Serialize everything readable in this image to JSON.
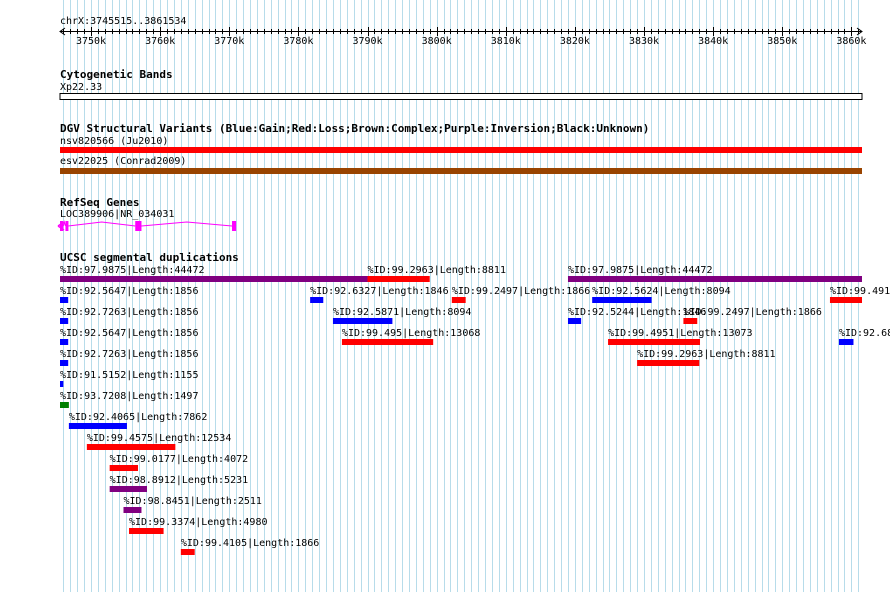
{
  "browser": {
    "position": "chrX:3745515..3861534",
    "axis": {
      "start": 3745515,
      "end": 3861534,
      "ticks": [
        {
          "value": 3750000,
          "label": "3750k"
        },
        {
          "value": 3760000,
          "label": "3760k"
        },
        {
          "value": 3770000,
          "label": "3770k"
        },
        {
          "value": 3780000,
          "label": "3780k"
        },
        {
          "value": 3790000,
          "label": "3790k"
        },
        {
          "value": 3800000,
          "label": "3800k"
        },
        {
          "value": 3810000,
          "label": "3810k"
        },
        {
          "value": 3820000,
          "label": "3820k"
        },
        {
          "value": 3830000,
          "label": "3830k"
        },
        {
          "value": 3840000,
          "label": "3840k"
        },
        {
          "value": 3850000,
          "label": "3850k"
        },
        {
          "value": 3860000,
          "label": "3860k"
        }
      ]
    },
    "colors": {
      "grid": "#b7dcea",
      "gain": "#0000ff",
      "loss": "#ff0000",
      "complex": "#994400",
      "inversion": "#800080",
      "dup_purple": "#800080",
      "dup_blue": "#0000ff",
      "dup_red": "#ff0000",
      "dup_green": "#008000",
      "gene": "#ff00ff"
    }
  },
  "tracks": [
    {
      "title": "Cytogenetic Bands",
      "features": [
        {
          "label": "Xp22.33",
          "start": 3745515,
          "end": 3861534,
          "style": "outline"
        }
      ]
    },
    {
      "title": "DGV Structural Variants (Blue:Gain;Red:Loss;Brown:Complex;Purple:Inversion;Black:Unknown)",
      "features": [
        {
          "label": "nsv820566 (Ju2010)",
          "start": 3745515,
          "end": 3861534,
          "color": "loss"
        },
        {
          "label": "esv22025 (Conrad2009)",
          "start": 3745515,
          "end": 3861534,
          "color": "complex"
        }
      ]
    },
    {
      "title": "RefSeq Genes",
      "gene": {
        "label": "LOC389906|NR_034031",
        "start": 3745515,
        "end": 3771000,
        "strand": "minus",
        "exons": [
          [
            3745515,
            3746000
          ],
          [
            3746300,
            3746700
          ],
          [
            3756400,
            3757300
          ],
          [
            3770400,
            3771000
          ]
        ]
      }
    },
    {
      "title": "UCSC segmental duplications",
      "rows": [
        [
          {
            "label": "%ID:97.9875|Length:44472",
            "start": 3745515,
            "end": 3790000,
            "color": "dup_purple"
          },
          {
            "label": "%ID:99.2963|Length:8811",
            "start": 3790000,
            "end": 3799000,
            "color": "dup_red"
          },
          {
            "label": "%ID:97.9875|Length:44472",
            "start": 3819000,
            "end": 3861534,
            "color": "dup_purple"
          }
        ],
        [
          {
            "label": "%ID:92.5647|Length:1856",
            "start": 3745515,
            "end": 3746700,
            "color": "dup_blue"
          },
          {
            "label": "%ID:92.6327|Length:1846",
            "start": 3781700,
            "end": 3783600,
            "color": "dup_blue"
          },
          {
            "label": "%ID:99.2497|Length:1866",
            "start": 3802200,
            "end": 3804200,
            "color": "dup_red"
          },
          {
            "label": "%ID:92.5624|Length:8094",
            "start": 3822500,
            "end": 3831100,
            "color": "dup_blue"
          },
          {
            "label": "%ID:99.491",
            "start": 3856900,
            "end": 3861534,
            "color": "dup_red"
          }
        ],
        [
          {
            "label": "%ID:92.7263|Length:1856",
            "start": 3745515,
            "end": 3746700,
            "color": "dup_blue"
          },
          {
            "label": "%ID:92.5871|Length:8094",
            "start": 3785000,
            "end": 3793600,
            "color": "dup_blue"
          },
          {
            "label": "%ID:92.5244|Length:1846",
            "start": 3819000,
            "end": 3820900,
            "color": "dup_blue"
          },
          {
            "label": "%ID:99.2497|Length:1866",
            "start": 3835700,
            "end": 3837700,
            "color": "dup_red"
          }
        ],
        [
          {
            "label": "%ID:92.5647|Length:1856",
            "start": 3745515,
            "end": 3746700,
            "color": "dup_blue"
          },
          {
            "label": "%ID:99.495|Length:13068",
            "start": 3786300,
            "end": 3799500,
            "color": "dup_red"
          },
          {
            "label": "%ID:99.4951|Length:13073",
            "start": 3824800,
            "end": 3838100,
            "color": "dup_red"
          },
          {
            "label": "%ID:92.68",
            "start": 3858200,
            "end": 3860300,
            "color": "dup_blue"
          }
        ],
        [
          {
            "label": "%ID:92.7263|Length:1856",
            "start": 3745515,
            "end": 3746700,
            "color": "dup_blue"
          },
          {
            "label": "%ID:99.2963|Length:8811",
            "start": 3829000,
            "end": 3838000,
            "color": "dup_red"
          }
        ],
        [
          {
            "label": "%ID:91.5152|Length:1155",
            "start": 3745515,
            "end": 3746000,
            "color": "dup_blue"
          }
        ],
        [
          {
            "label": "%ID:93.7208|Length:1497",
            "start": 3745515,
            "end": 3746800,
            "color": "dup_green"
          }
        ],
        [
          {
            "label": "%ID:92.4065|Length:7862",
            "start": 3746800,
            "end": 3755200,
            "color": "dup_blue"
          }
        ],
        [
          {
            "label": "%ID:99.4575|Length:12534",
            "start": 3749400,
            "end": 3762200,
            "color": "dup_red"
          }
        ],
        [
          {
            "label": "%ID:99.0177|Length:4072",
            "start": 3752700,
            "end": 3756800,
            "color": "dup_red"
          }
        ],
        [
          {
            "label": "%ID:98.8912|Length:5231",
            "start": 3752700,
            "end": 3758100,
            "color": "dup_purple"
          }
        ],
        [
          {
            "label": "%ID:98.8451|Length:2511",
            "start": 3754700,
            "end": 3757300,
            "color": "dup_purple"
          }
        ],
        [
          {
            "label": "%ID:99.3374|Length:4980",
            "start": 3755500,
            "end": 3760500,
            "color": "dup_red"
          }
        ],
        [
          {
            "label": "%ID:99.4105|Length:1866",
            "start": 3763000,
            "end": 3765000,
            "color": "dup_red"
          }
        ]
      ]
    }
  ]
}
